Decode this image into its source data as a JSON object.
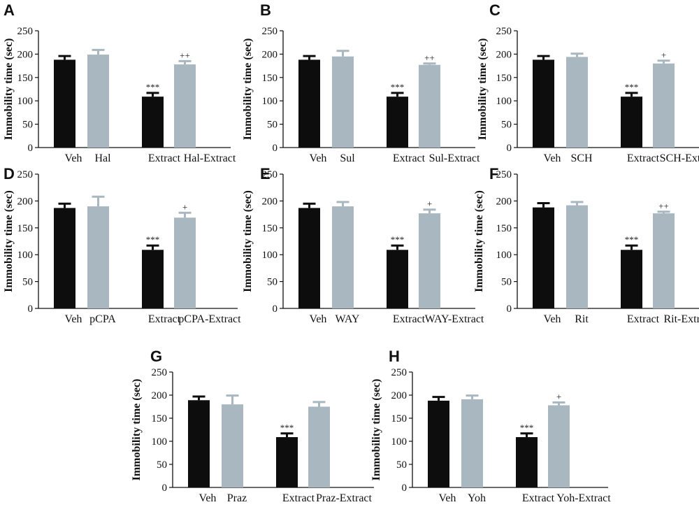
{
  "figure": {
    "title": ""
  },
  "colors": {
    "dark_bar": "#0d0d0d",
    "light_bar": "#a9b7c0",
    "axis": "#111111"
  },
  "chart_data": [
    {
      "panel": "A",
      "type": "bar",
      "ylabel": "Immobility time (sec)",
      "ylim": [
        0,
        250
      ],
      "yticks": [
        0,
        50,
        100,
        150,
        200,
        250
      ],
      "categories": [
        "Veh",
        "Hal",
        "Extract",
        "Hal-Extract"
      ],
      "values": [
        188,
        199,
        109,
        178
      ],
      "errors": [
        8,
        10,
        8,
        7
      ],
      "annotations": [
        "",
        "",
        "***",
        "++"
      ]
    },
    {
      "panel": "B",
      "type": "bar",
      "ylabel": "Immobility time (sec)",
      "ylim": [
        0,
        250
      ],
      "yticks": [
        0,
        50,
        100,
        150,
        200,
        250
      ],
      "categories": [
        "Veh",
        "Sul",
        "Extract",
        "Sul-Extract"
      ],
      "values": [
        188,
        195,
        109,
        177
      ],
      "errors": [
        8,
        12,
        8,
        3
      ],
      "annotations": [
        "",
        "",
        "***",
        "++"
      ]
    },
    {
      "panel": "C",
      "type": "bar",
      "ylabel": "Immobility time (sec)",
      "ylim": [
        0,
        250
      ],
      "yticks": [
        0,
        50,
        100,
        150,
        200,
        250
      ],
      "categories": [
        "Veh",
        "SCH",
        "Extract",
        "SCH-Extract"
      ],
      "values": [
        188,
        194,
        109,
        180
      ],
      "errors": [
        8,
        7,
        8,
        6
      ],
      "annotations": [
        "",
        "",
        "***",
        "+"
      ]
    },
    {
      "panel": "D",
      "type": "bar",
      "ylabel": "Immobility time (sec)",
      "ylim": [
        0,
        250
      ],
      "yticks": [
        0,
        50,
        100,
        150,
        200,
        250
      ],
      "categories": [
        "Veh",
        "pCPA",
        "Extract",
        "pCPA-Extract"
      ],
      "values": [
        187,
        190,
        109,
        169
      ],
      "errors": [
        8,
        18,
        8,
        9
      ],
      "annotations": [
        "",
        "",
        "***",
        "+"
      ]
    },
    {
      "panel": "E",
      "type": "bar",
      "ylabel": "Immobility time (sec)",
      "ylim": [
        0,
        250
      ],
      "yticks": [
        0,
        50,
        100,
        150,
        200,
        250
      ],
      "categories": [
        "Veh",
        "WAY",
        "Extract",
        "WAY-Extract"
      ],
      "values": [
        187,
        190,
        109,
        177
      ],
      "errors": [
        8,
        8,
        8,
        7
      ],
      "annotations": [
        "",
        "",
        "***",
        "+"
      ]
    },
    {
      "panel": "F",
      "type": "bar",
      "ylabel": "Immobility time (sec)",
      "ylim": [
        0,
        250
      ],
      "yticks": [
        0,
        50,
        100,
        150,
        200,
        250
      ],
      "categories": [
        "Veh",
        "Rit",
        "Extract",
        "Rit-Extract"
      ],
      "values": [
        188,
        192,
        109,
        177
      ],
      "errors": [
        8,
        6,
        8,
        3
      ],
      "annotations": [
        "",
        "",
        "***",
        "++"
      ]
    },
    {
      "panel": "G",
      "type": "bar",
      "ylabel": "Immobility time (sec)",
      "ylim": [
        0,
        250
      ],
      "yticks": [
        0,
        50,
        100,
        150,
        200,
        250
      ],
      "categories": [
        "Veh",
        "Praz",
        "Extract",
        "Praz-Extract"
      ],
      "values": [
        189,
        180,
        109,
        175
      ],
      "errors": [
        8,
        19,
        8,
        10
      ],
      "annotations": [
        "",
        "",
        "***",
        ""
      ]
    },
    {
      "panel": "H",
      "type": "bar",
      "ylabel": "Immobility time (sec)",
      "ylim": [
        0,
        250
      ],
      "yticks": [
        0,
        50,
        100,
        150,
        200,
        250
      ],
      "categories": [
        "Veh",
        "Yoh",
        "Extract",
        "Yoh-Extract"
      ],
      "values": [
        188,
        191,
        109,
        178
      ],
      "errors": [
        8,
        8,
        8,
        6
      ],
      "annotations": [
        "",
        "",
        "***",
        "+"
      ]
    }
  ]
}
